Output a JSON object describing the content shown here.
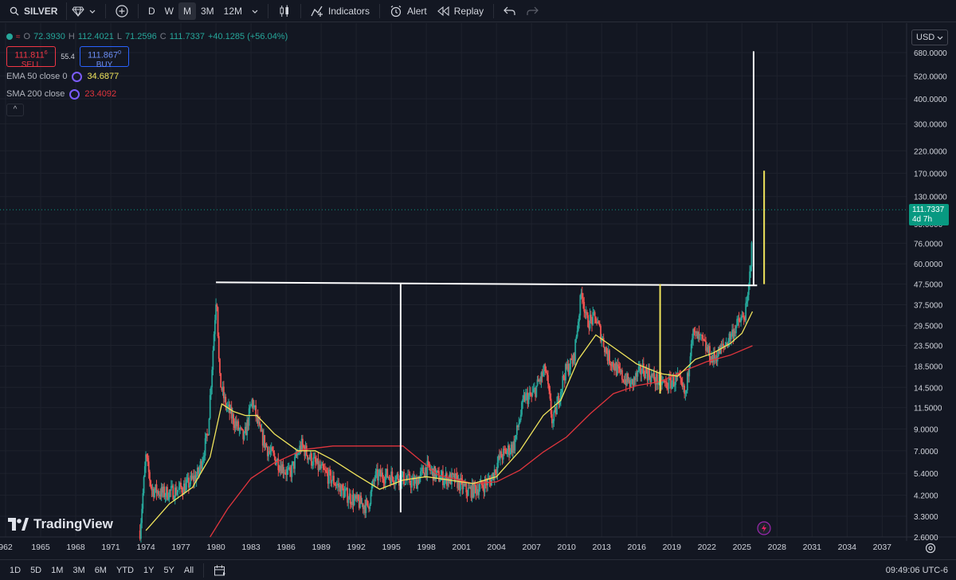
{
  "toolbar": {
    "symbol": "SILVER",
    "intervals": [
      "D",
      "W",
      "M",
      "3M",
      "12M"
    ],
    "active_interval": "M",
    "indicators_label": "Indicators",
    "alert_label": "Alert",
    "replay_label": "Replay",
    "icons": [
      "search-icon",
      "diamond-icon",
      "plus-icon",
      "chevron-down-icon",
      "candles-icon",
      "indicators-icon",
      "alert-icon",
      "replay-icon",
      "undo-icon",
      "redo-icon"
    ]
  },
  "legend": {
    "o_label": "O",
    "open": "72.3930",
    "h_label": "H",
    "high": "112.4021",
    "l_label": "L",
    "low": "71.2596",
    "c_label": "C",
    "close": "111.7337",
    "change": "+40.1285 (+56.04%)",
    "sell_price": "111.811",
    "sell_price_sup": "6",
    "sell_label": "SELL",
    "spread": "55.4",
    "buy_price": "111.867",
    "buy_price_sup": "0",
    "buy_label": "BUY",
    "ema_label": "EMA 50 close 0",
    "ema_value": "34.6877",
    "sma_label": "SMA 200 close",
    "sma_value": "23.4092",
    "collapse_glyph": "^"
  },
  "axis": {
    "currency": "USD",
    "last_price": "111.7337",
    "countdown": "4d 7h"
  },
  "bottom": {
    "ranges": [
      "1D",
      "5D",
      "1M",
      "3M",
      "6M",
      "YTD",
      "1Y",
      "5Y",
      "All"
    ],
    "clock": "09:49:06 UTC-6"
  },
  "logo_text": "TradingView",
  "colors": {
    "background": "#131722",
    "up": "#26a69a",
    "down": "#ef5350",
    "ema": "#f0e45c",
    "sma": "#e0353d",
    "annotation_white": "#ffffff",
    "annotation_yellow": "#f0e45c",
    "price_tag": "#089981"
  },
  "chart_data": {
    "type": "candlestick",
    "symbol": "SILVER",
    "interval": "M",
    "scale": "log",
    "ylim": [
      2.6,
      680
    ],
    "xlim": [
      1962,
      2038
    ],
    "y_ticks": [
      "680.0000",
      "520.0000",
      "400.0000",
      "300.0000",
      "220.0000",
      "170.0000",
      "130.0000",
      "95.0000",
      "76.0000",
      "60.0000",
      "47.5000",
      "37.5000",
      "29.5000",
      "23.5000",
      "18.5000",
      "14.5000",
      "11.5000",
      "9.0000",
      "7.0000",
      "5.4000",
      "4.2000",
      "3.3000",
      "2.6000"
    ],
    "x_ticks": [
      "962",
      "1965",
      "1968",
      "1971",
      "1974",
      "1977",
      "1980",
      "1983",
      "1986",
      "1989",
      "1992",
      "1995",
      "1998",
      "2001",
      "2004",
      "2007",
      "2010",
      "2013",
      "2016",
      "2019",
      "2022",
      "2025",
      "2028",
      "2031",
      "2034",
      "2037"
    ],
    "price_path": {
      "x": [
        1973.5,
        1974.0,
        1974.5,
        1975.5,
        1976.5,
        1977.5,
        1978.5,
        1979.3,
        1979.7,
        1980.05,
        1980.3,
        1980.8,
        1981.5,
        1982.4,
        1983.1,
        1983.8,
        1984.5,
        1985.5,
        1986.3,
        1987.3,
        1988.0,
        1989.0,
        1990.0,
        1991.0,
        1992.0,
        1993.0,
        1993.6,
        1994.5,
        1996.0,
        1997.0,
        1998.0,
        1999.0,
        2000.5,
        2001.5,
        2002.5,
        2003.5,
        2004.3,
        2005.5,
        2006.4,
        2007.0,
        2008.2,
        2008.8,
        2009.8,
        2010.6,
        2011.3,
        2011.7,
        2012.5,
        2013.5,
        2014.5,
        2015.5,
        2016.5,
        2017.5,
        2018.5,
        2019.5,
        2020.2,
        2020.7,
        2021.5,
        2022.5,
        2023.5,
        2024.3,
        2024.8,
        2025.1,
        2025.4,
        2025.6,
        2025.8,
        2025.9
      ],
      "y": [
        2.8,
        6.5,
        4.5,
        4.3,
        4.4,
        4.7,
        5.4,
        8.5,
        20.0,
        45.0,
        16.0,
        12.0,
        10.0,
        8.0,
        12.5,
        8.5,
        7.0,
        6.0,
        5.3,
        7.5,
        6.5,
        5.6,
        5.0,
        4.3,
        3.9,
        3.7,
        5.2,
        5.3,
        5.1,
        4.8,
        5.8,
        5.2,
        5.0,
        4.4,
        4.6,
        5.0,
        6.5,
        7.5,
        13.0,
        13.0,
        18.0,
        9.5,
        17.0,
        20.0,
        45.0,
        31.0,
        32.0,
        21.0,
        17.0,
        15.0,
        18.0,
        16.0,
        15.0,
        16.0,
        13.0,
        27.0,
        25.0,
        20.0,
        23.5,
        28.0,
        31.0,
        32.0,
        36.0,
        46.0,
        70.0,
        111.7
      ]
    },
    "ema50": {
      "x": [
        1974.0,
        1976.0,
        1978.0,
        1979.5,
        1980.5,
        1981.5,
        1982.5,
        1983.5,
        1985.0,
        1987.0,
        1988.5,
        1990.0,
        1992.0,
        1994.0,
        1996.0,
        1998.0,
        2000.0,
        2002.0,
        2004.0,
        2006.0,
        2008.0,
        2009.5,
        2011.0,
        2012.5,
        2014.0,
        2016.0,
        2018.0,
        2019.5,
        2021.0,
        2022.5,
        2024.0,
        2025.0,
        2025.9
      ],
      "y": [
        2.8,
        3.8,
        4.6,
        6.5,
        12.0,
        11.0,
        10.5,
        10.5,
        8.5,
        7.0,
        7.0,
        6.3,
        5.3,
        4.5,
        5.0,
        5.2,
        5.0,
        4.8,
        5.2,
        7.0,
        10.5,
        12.5,
        20.0,
        26.5,
        23.0,
        19.0,
        17.0,
        16.5,
        20.0,
        21.5,
        24.0,
        27.0,
        34.7
      ]
    },
    "sma200": {
      "x": [
        1979.5,
        1981.0,
        1983.0,
        1985.0,
        1987.5,
        1990.0,
        1993.0,
        1996.0,
        1999.0,
        2002.0,
        2004.0,
        2006.0,
        2008.0,
        2010.0,
        2012.0,
        2014.0,
        2016.0,
        2018.0,
        2020.0,
        2022.0,
        2024.0,
        2025.9
      ],
      "y": [
        2.6,
        3.6,
        5.1,
        6.1,
        7.1,
        7.4,
        7.4,
        7.4,
        5.3,
        4.8,
        4.9,
        5.6,
        6.9,
        8.2,
        10.7,
        13.5,
        14.8,
        15.5,
        17.5,
        19.5,
        21.0,
        23.4
      ]
    },
    "annotations": [
      {
        "kind": "horizontal",
        "color": "white",
        "x": [
          1980.0,
          2026.3
        ],
        "y": [
          48.5,
          46.8
        ]
      },
      {
        "kind": "vertical",
        "color": "white",
        "x": 1995.8,
        "y": [
          3.45,
          48.0
        ]
      },
      {
        "kind": "vertical",
        "color": "white",
        "x": 2026.0,
        "y": [
          46.5,
          690.0
        ]
      },
      {
        "kind": "vertical",
        "color": "yellow",
        "x": 2018.0,
        "y": [
          13.5,
          47.5
        ]
      },
      {
        "kind": "vertical",
        "color": "yellow",
        "x": 2026.9,
        "y": [
          47.5,
          175.0
        ]
      }
    ]
  }
}
